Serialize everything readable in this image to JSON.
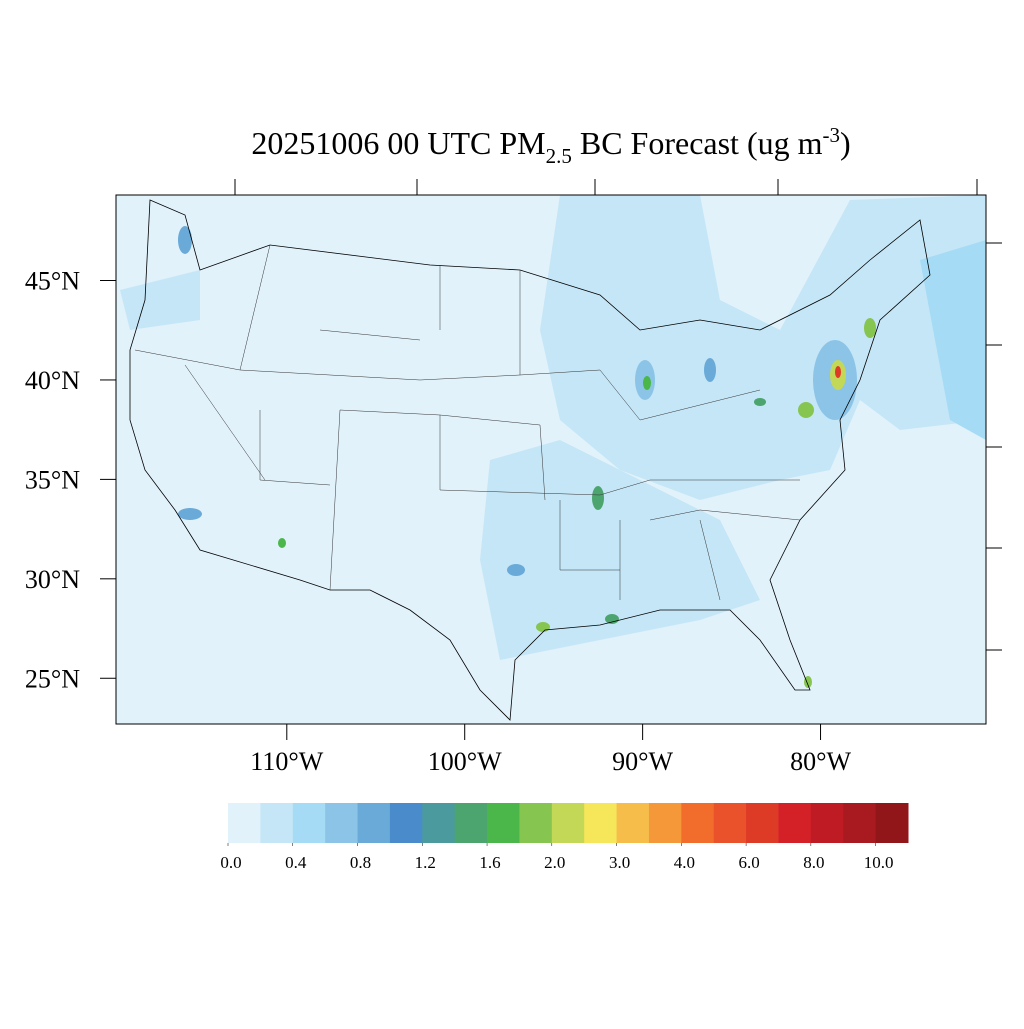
{
  "map": {
    "title": {
      "main": "20251006 00 UTC PM",
      "sub": "2.5",
      "rest": " BC Forecast (ug m",
      "sup": "-3",
      "end": ")"
    },
    "latlim": [
      22.7,
      49.3
    ],
    "lonlim": [
      -119.6,
      -70.7
    ],
    "lat_ticks": [
      {
        "value": 45,
        "label": "45°N"
      },
      {
        "value": 40,
        "label": "40°N"
      },
      {
        "value": 35,
        "label": "35°N"
      },
      {
        "value": 30,
        "label": "30°N"
      },
      {
        "value": 25,
        "label": "25°N"
      }
    ],
    "lon_ticks": [
      {
        "value": -110,
        "label": "110°W"
      },
      {
        "value": -100,
        "label": "100°W"
      },
      {
        "value": -90,
        "label": "90°W"
      },
      {
        "value": -80,
        "label": "80°W"
      }
    ],
    "colorbar": {
      "colors": [
        "#e1f2fb",
        "#c5e6f7",
        "#a6dbf5",
        "#8cc4e8",
        "#6aaad8",
        "#4a8ccb",
        "#4a9a9e",
        "#4ca56f",
        "#4bb74a",
        "#86c54f",
        "#c3d856",
        "#f5e65a",
        "#f7bd4b",
        "#f5983a",
        "#f26d2c",
        "#e9522a",
        "#de3b27",
        "#d42128",
        "#be1b24",
        "#a81a20",
        "#901619"
      ],
      "labels": [
        {
          "value": 0,
          "label": "0.0"
        },
        {
          "value": 0.4,
          "label": "0.4"
        },
        {
          "value": 0.8,
          "label": "0.8"
        },
        {
          "value": 1.2,
          "label": "1.2"
        },
        {
          "value": 1.6,
          "label": "1.6"
        },
        {
          "value": 2,
          "label": "2.0"
        },
        {
          "value": 3,
          "label": "3.0"
        },
        {
          "value": 4,
          "label": "4.0"
        },
        {
          "value": 6,
          "label": "6.0"
        },
        {
          "value": 8,
          "label": "8.0"
        },
        {
          "value": 10,
          "label": "10.0"
        }
      ]
    }
  }
}
